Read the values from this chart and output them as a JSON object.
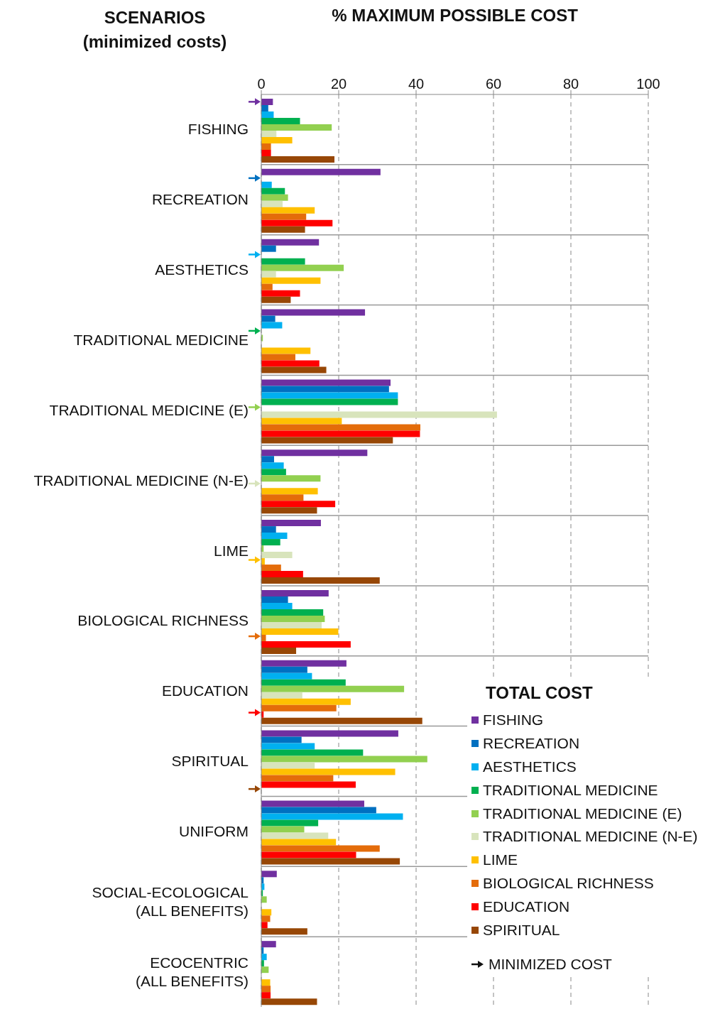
{
  "chart_data": {
    "type": "bar",
    "orientation": "horizontal",
    "xlabel": "% MAXIMUM POSSIBLE COST",
    "ylabel": "SCENARIOS\n(minimized costs)",
    "legend_title": "TOTAL COST",
    "legend": "bottom right",
    "grid": true,
    "annotations": [
      "MINIMIZED COST"
    ],
    "categories": [
      "FISHING",
      "RECREATION",
      "AESTHETICS",
      "TRADITIONAL MEDICINE",
      "TRADITIONAL MEDICINE (E)",
      "TRADITIONAL MEDICINE (N-E)",
      "LIME",
      "BIOLOGICAL RICHNESS",
      "EDUCATION",
      "SPIRITUAL",
      "UNIFORM",
      "SOCIAL-ECOLOGICAL\n(ALL BENEFITS)",
      "ECOCENTRIC\n(ALL BENEFITS)"
    ],
    "xlim": [
      0,
      100
    ],
    "xticks": [
      0,
      20,
      40,
      60,
      80,
      100
    ],
    "series": [
      {
        "name": "FISHING",
        "color": "#7030a0",
        "values": [
          3.0,
          30.8,
          14.9,
          26.8,
          33.4,
          27.4,
          15.4,
          17.4,
          22.0,
          35.4,
          26.6,
          4.0,
          3.8
        ]
      },
      {
        "name": "RECREATION",
        "color": "#0070c0",
        "values": [
          1.8,
          0,
          3.8,
          3.6,
          33.0,
          3.3,
          3.8,
          6.9,
          11.9,
          10.4,
          29.7,
          0.6,
          0.6
        ]
      },
      {
        "name": "AESTHETICS",
        "color": "#00b0f0",
        "values": [
          3.2,
          2.7,
          0,
          5.4,
          35.3,
          5.8,
          6.7,
          8.0,
          13.1,
          13.8,
          36.6,
          0.8,
          1.4
        ]
      },
      {
        "name": "TRADITIONAL MEDICINE",
        "color": "#00b050",
        "values": [
          10.0,
          6.1,
          11.3,
          0,
          35.3,
          6.4,
          4.9,
          16.0,
          21.8,
          26.3,
          14.7,
          0.4,
          0.7
        ]
      },
      {
        "name": "TRADITIONAL MEDICINE (E)",
        "color": "#92d050",
        "values": [
          18.2,
          6.9,
          21.3,
          0.4,
          0,
          15.3,
          0.6,
          16.4,
          36.9,
          42.9,
          11.1,
          1.4,
          1.9
        ]
      },
      {
        "name": "TRADITIONAL MEDICINE (N-E)",
        "color": "#d8e4bc",
        "values": [
          3.9,
          5.5,
          3.8,
          0,
          60.9,
          0,
          8.0,
          15.6,
          10.6,
          13.8,
          17.3,
          0,
          0
        ]
      },
      {
        "name": "LIME",
        "color": "#ffc000",
        "values": [
          8.0,
          13.8,
          15.3,
          12.7,
          20.8,
          14.6,
          0.9,
          19.9,
          23.1,
          34.6,
          19.3,
          2.6,
          2.3
        ]
      },
      {
        "name": "BIOLOGICAL RICHNESS",
        "color": "#e46c0a",
        "values": [
          2.5,
          11.6,
          2.9,
          8.8,
          41.1,
          10.9,
          5.1,
          1.2,
          19.4,
          18.6,
          30.6,
          2.3,
          2.4
        ]
      },
      {
        "name": "EDUCATION",
        "color": "#ff0000",
        "values": [
          2.5,
          18.4,
          10.0,
          15.0,
          41.0,
          19.1,
          10.8,
          23.1,
          0.6,
          24.4,
          24.5,
          1.6,
          2.4
        ]
      },
      {
        "name": "SPIRITUAL",
        "color": "#974706",
        "values": [
          18.9,
          11.3,
          7.6,
          16.8,
          34.0,
          14.4,
          30.6,
          9.0,
          41.6,
          0,
          35.8,
          11.9,
          14.4
        ]
      }
    ]
  }
}
